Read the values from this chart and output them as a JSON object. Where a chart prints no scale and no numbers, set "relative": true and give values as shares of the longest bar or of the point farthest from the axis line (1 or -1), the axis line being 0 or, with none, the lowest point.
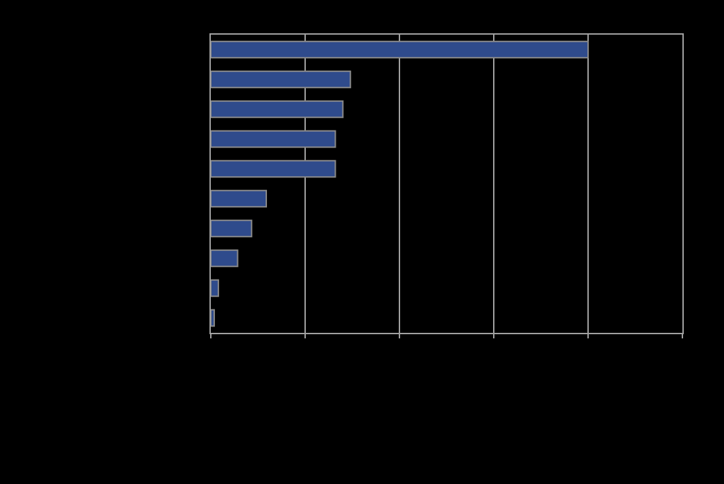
{
  "chart_data": {
    "type": "bar",
    "orientation": "horizontal",
    "relative": true,
    "grid": "x",
    "legend": false,
    "categories": [
      null,
      null,
      null,
      null,
      null,
      null,
      null,
      null,
      null,
      null
    ],
    "values": [
      1,
      0.37,
      0.35,
      0.33,
      0.33,
      0.147,
      0.108,
      0.071,
      0.02,
      0.009
    ],
    "color": "#2f4b8c"
  }
}
